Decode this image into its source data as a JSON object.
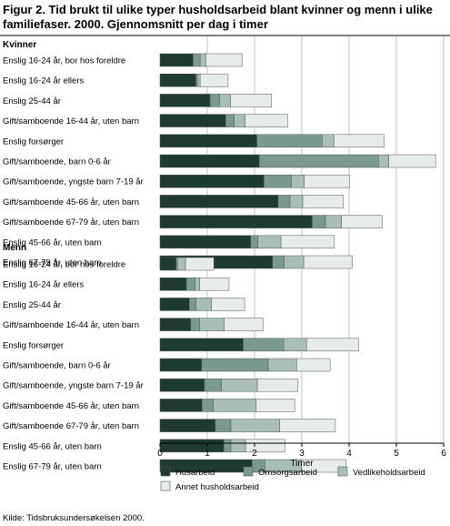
{
  "title_line1": "Figur 2. Tid brukt til ulike typer husholdsarbeid blant kvinner og menn i ulike",
  "title_line2": "familiefaser. 2000. Gjennomsnitt per dag i timer",
  "source": "Kilde: Tidsbruksundersøkelsen 2000.",
  "colors": {
    "Husarbeid": "#1e3b32",
    "Omsorgsarbeid": "#7a9a8f",
    "Vedlikeholdsarbeid": "#a9bfb6",
    "Annet husholdsarbeid": "#e6ece9",
    "bar_stroke": "#555555",
    "grid": "#999999"
  },
  "chart_data": {
    "type": "bar",
    "orientation": "horizontal",
    "stacked": true,
    "xlabel": "Timer",
    "xlim": [
      0,
      6
    ],
    "xticks": [
      0,
      1,
      2,
      3,
      4,
      5,
      6
    ],
    "grid": true,
    "legend_position": "bottom",
    "groups": [
      {
        "name": "Kvinner",
        "categories": [
          "Enslig 16-24 år, bor hos foreldre",
          "Enslig 16-24 år ellers",
          "Enslig 25-44 år",
          "Gift/samboende 16-44 år, uten barn",
          "Enslig forsørger",
          "Gift/samboende, barn 0-6 år",
          "Gift/samboende, yngste barn 7-19 år",
          "Gift/samboende 45-66 år, uten barn",
          "Gift/samboende 67-79 år, uten barn",
          "Enslig 45-66 år, uten barn",
          "Enslig 67-79 år, uten barn"
        ],
        "series": [
          {
            "name": "Husarbeid",
            "values": [
              0.7,
              0.76,
              1.06,
              1.39,
              2.05,
              2.1,
              2.2,
              2.5,
              3.22,
              1.92,
              2.38
            ]
          },
          {
            "name": "Omsorgsarbeid",
            "values": [
              0.15,
              0.03,
              0.2,
              0.18,
              1.38,
              2.52,
              0.58,
              0.25,
              0.28,
              0.15,
              0.25
            ]
          },
          {
            "name": "Vedlikeholdsarbeid",
            "values": [
              0.12,
              0.06,
              0.23,
              0.23,
              0.25,
              0.22,
              0.27,
              0.27,
              0.34,
              0.49,
              0.41
            ]
          },
          {
            "name": "Annet husholdsarbeid",
            "values": [
              0.77,
              0.59,
              0.87,
              0.9,
              1.06,
              0.99,
              0.96,
              0.86,
              0.86,
              1.13,
              1.03
            ]
          }
        ]
      },
      {
        "name": "Menn",
        "categories": [
          "Enslig 16-24 år, bor hos foreldre",
          "Enslig 16-24 år ellers",
          "Enslig 25-44 år",
          "Gift/samboende 16-44 år, uten barn",
          "Enslig forsørger",
          "Gift/samboende, barn 0-6 år",
          "Gift/samboende, yngste barn 7-19 år",
          "Gift/samboende 45-66 år, uten barn",
          "Gift/samboende 67-79 år, uten barn",
          "Enslig 45-66 år, uten barn",
          "Enslig 67-79 år, uten barn"
        ],
        "series": [
          {
            "name": "Husarbeid",
            "values": [
              0.34,
              0.56,
              0.62,
              0.65,
              1.76,
              0.88,
              0.94,
              0.89,
              1.17,
              1.35,
              1.95
            ]
          },
          {
            "name": "Omsorgsarbeid",
            "values": [
              0.03,
              0.18,
              0.14,
              0.19,
              0.86,
              1.41,
              0.36,
              0.24,
              0.33,
              0.15,
              0.27
            ]
          },
          {
            "name": "Vedlikeholdsarbeid",
            "values": [
              0.17,
              0.1,
              0.33,
              0.52,
              0.48,
              0.6,
              0.76,
              0.9,
              1.03,
              0.31,
              0.77
            ]
          },
          {
            "name": "Annet husholdsarbeid",
            "values": [
              0.6,
              0.62,
              0.7,
              0.82,
              1.1,
              0.71,
              0.86,
              0.82,
              1.18,
              0.83,
              0.95
            ]
          }
        ]
      }
    ]
  }
}
